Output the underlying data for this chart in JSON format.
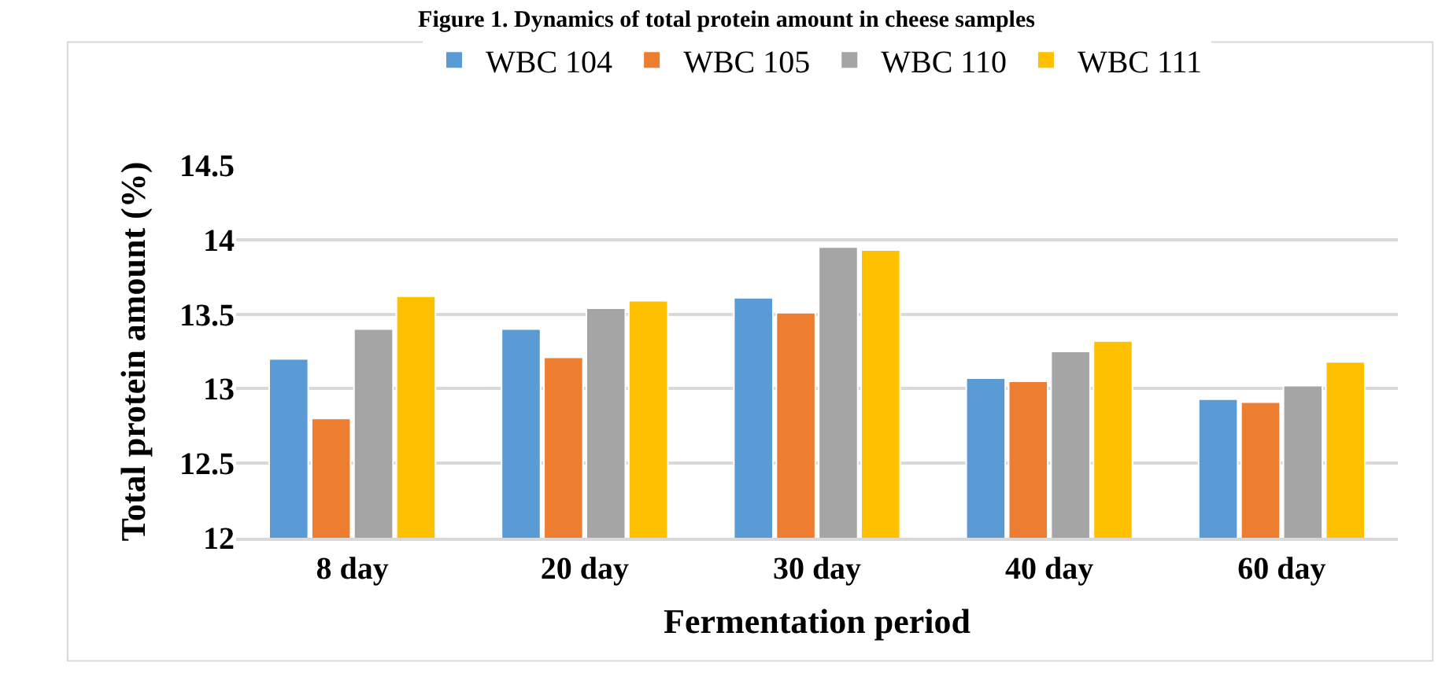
{
  "chart_data": {
    "type": "bar",
    "title": "Figure 1. Dynamics of total protein amount in cheese samples",
    "xlabel": "Fermentation period",
    "ylabel": "Total protein amount (%)",
    "categories": [
      "8 day",
      "20 day",
      "30 day",
      "40 day",
      "60 day"
    ],
    "series": [
      {
        "name": "WBC 104",
        "color": "#5b9bd5",
        "values": [
          13.2,
          13.4,
          13.61,
          13.07,
          12.93
        ]
      },
      {
        "name": "WBC 105",
        "color": "#ed7d31",
        "values": [
          12.8,
          13.21,
          13.51,
          13.05,
          12.91
        ]
      },
      {
        "name": "WBC 110",
        "color": "#a5a5a5",
        "values": [
          13.4,
          13.54,
          13.95,
          13.25,
          13.02
        ]
      },
      {
        "name": "WBC 111",
        "color": "#ffc000",
        "values": [
          13.62,
          13.59,
          13.93,
          13.32,
          13.18
        ]
      }
    ],
    "ylim": [
      12,
      14.5
    ],
    "yticks": [
      12,
      12.5,
      13,
      13.5,
      14,
      14.5
    ],
    "grid": "y",
    "legend": "top"
  }
}
